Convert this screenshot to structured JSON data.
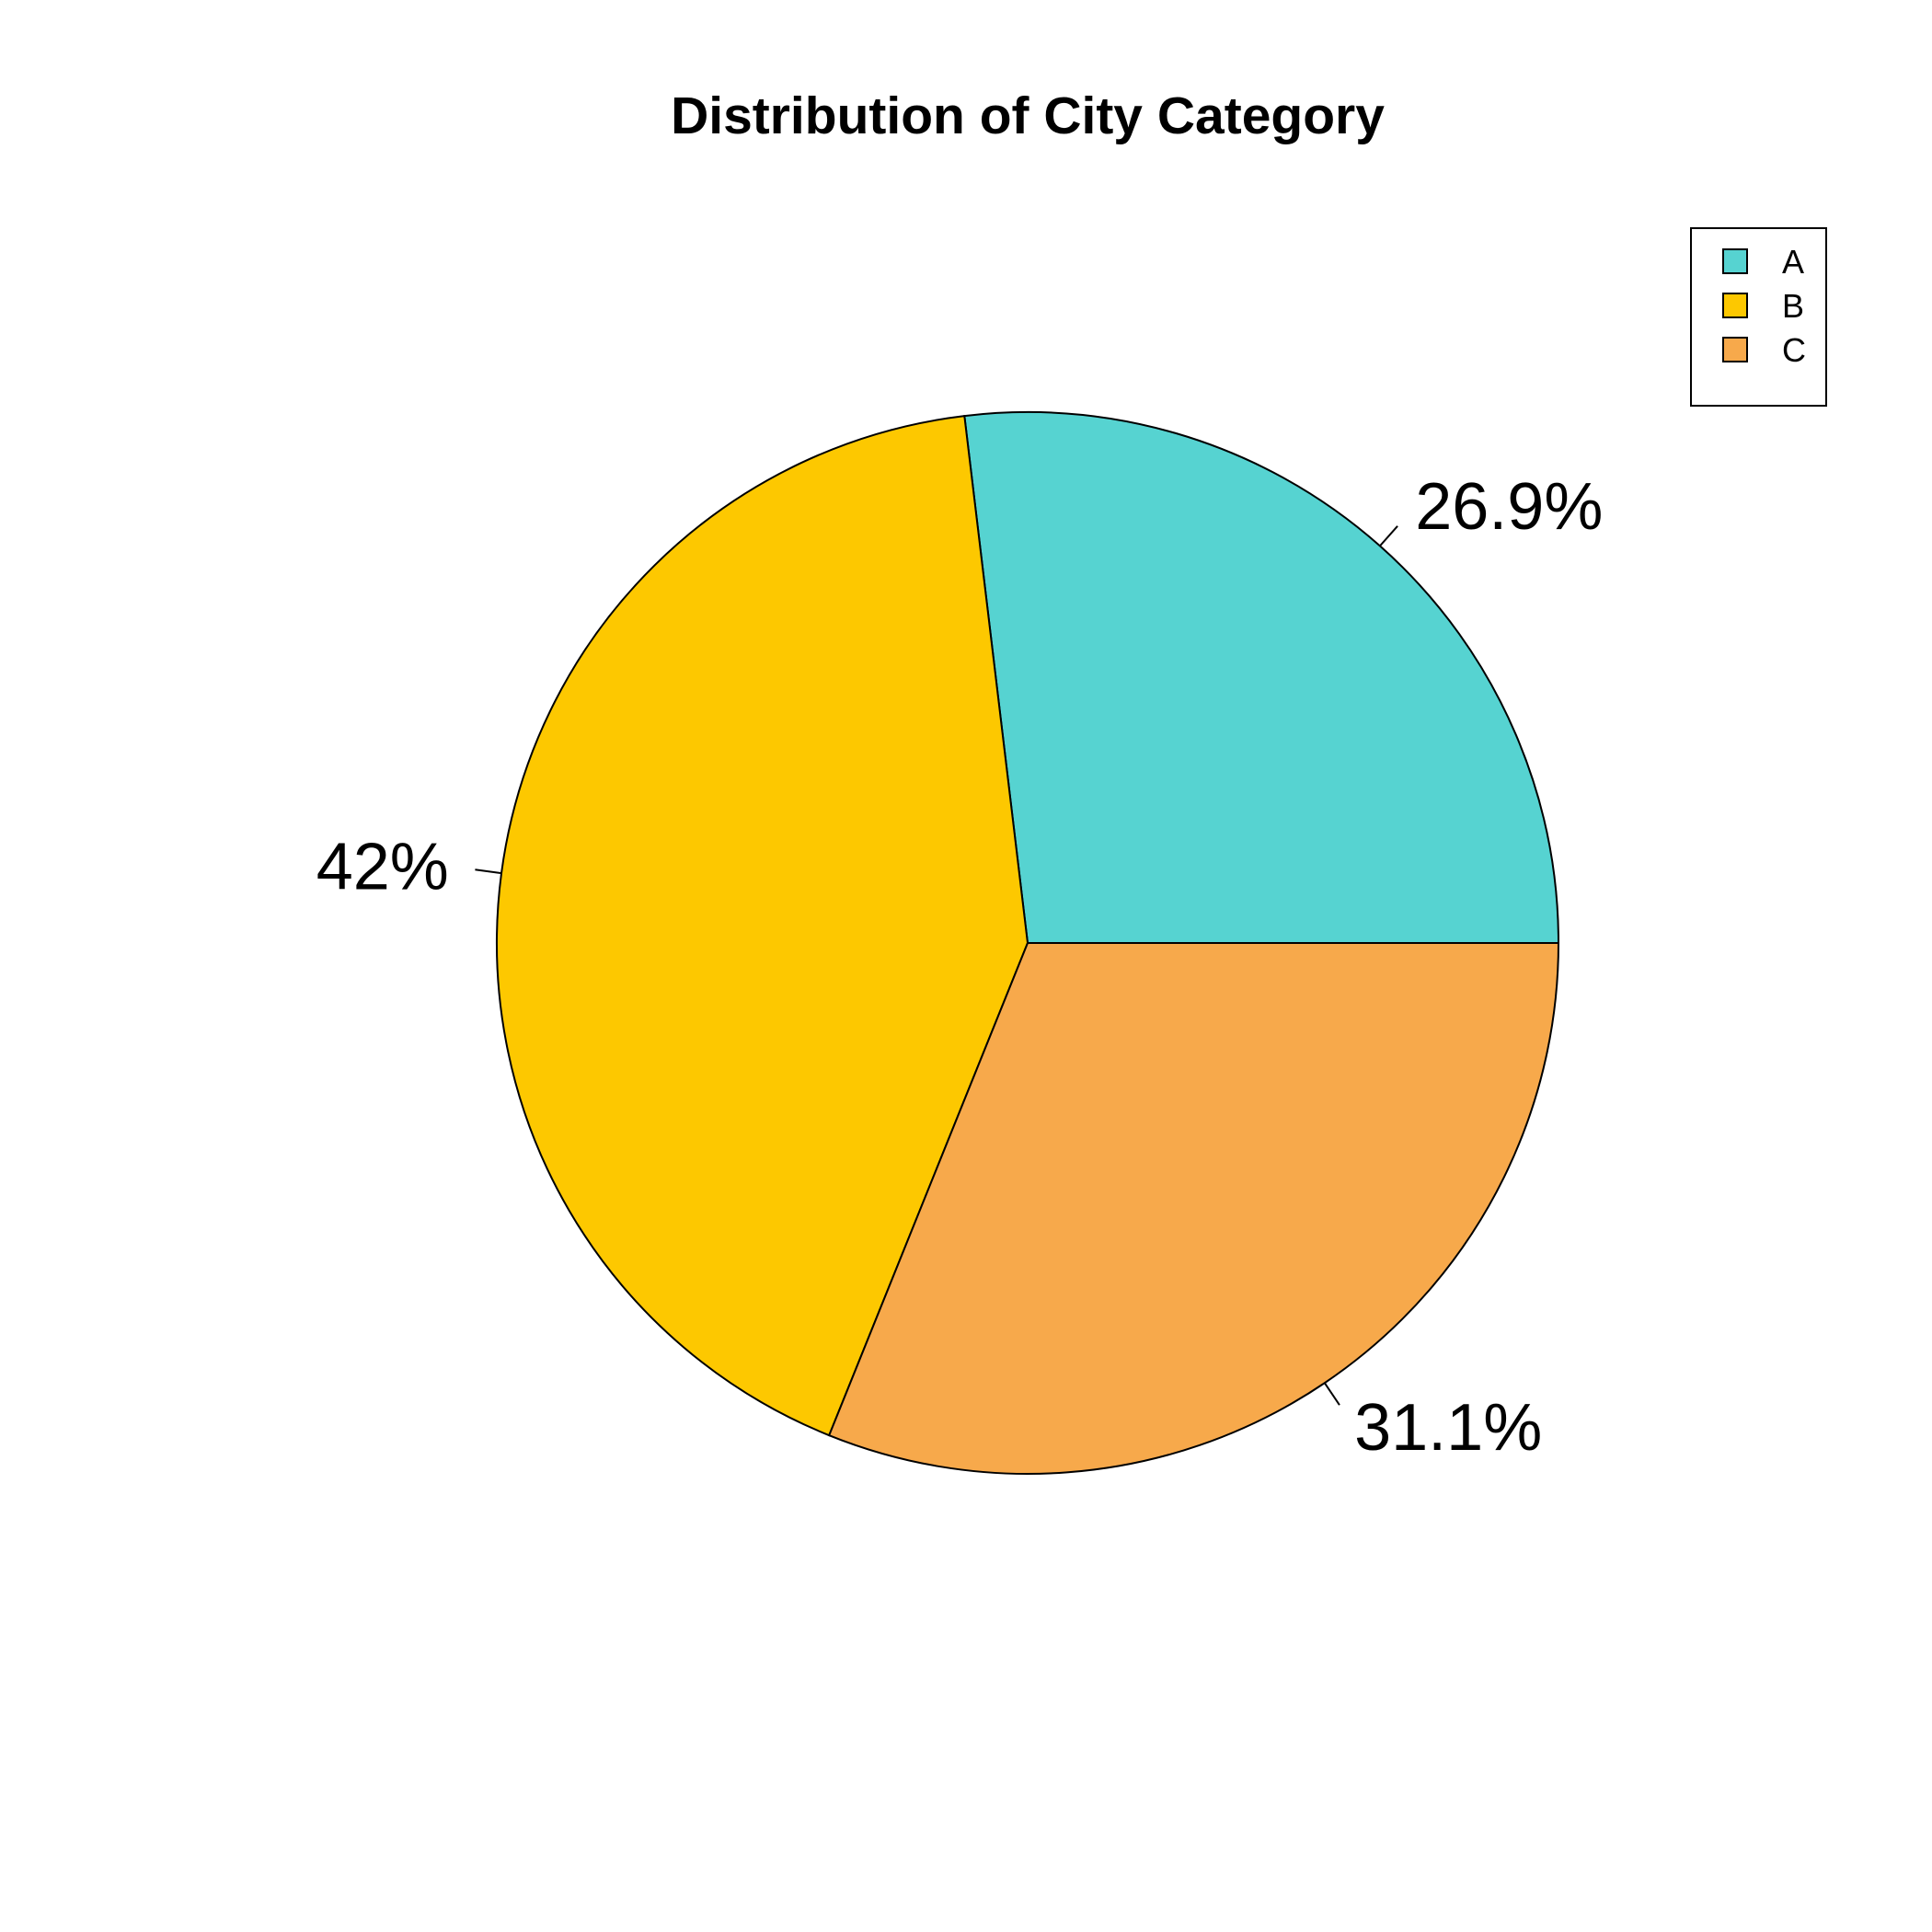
{
  "chart_data": {
    "type": "pie",
    "title": "Distribution of City Category",
    "categories": [
      "A",
      "B",
      "C"
    ],
    "values": [
      26.9,
      42.0,
      31.1
    ],
    "value_labels": [
      "26.9%",
      "42%",
      "31.1%"
    ],
    "colors": [
      "#56D3D1",
      "#FDC800",
      "#F7A94B"
    ],
    "start_angle_deg": 0,
    "direction": "counterclockwise",
    "legend": {
      "position": "top-right",
      "entries": [
        "A",
        "B",
        "C"
      ]
    }
  }
}
